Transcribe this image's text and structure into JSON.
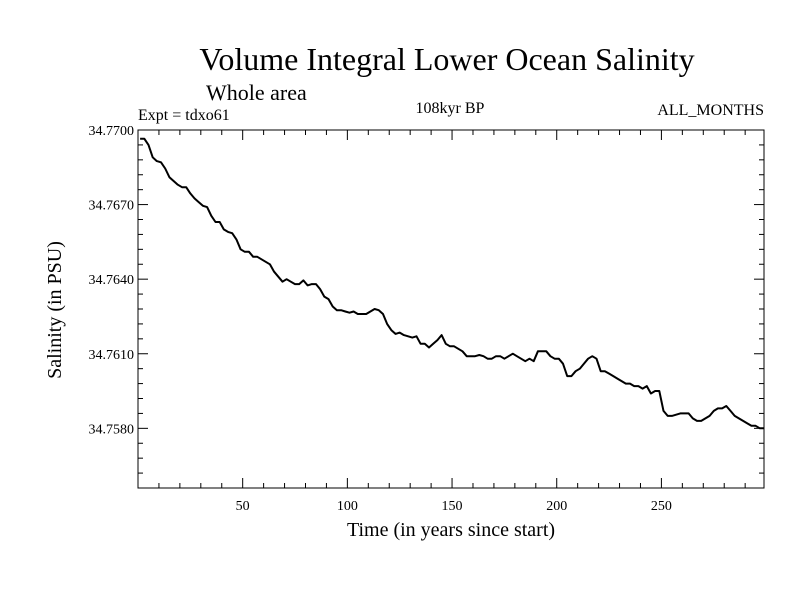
{
  "chart_data": {
    "type": "line",
    "title": "Volume Integral Lower Ocean Salinity",
    "subtitle": "Whole area",
    "left_note": "Expt = tdxo61",
    "center_note": "108kyr BP",
    "right_note": "ALL_MONTHS",
    "xlabel": "Time (in years since start)",
    "ylabel": "Salinity (in PSU)",
    "xlim": [
      0,
      299
    ],
    "ylim": [
      34.7556,
      34.77
    ],
    "x_ticks": [
      50,
      100,
      150,
      200,
      250
    ],
    "x_tick_labels": [
      "50",
      "100",
      "150",
      "200",
      "250"
    ],
    "y_ticks": [
      34.77,
      34.767,
      34.764,
      34.761,
      34.758
    ],
    "y_tick_labels": [
      "34.7700",
      "34.7670",
      "34.7640",
      "34.7610",
      "34.7580"
    ],
    "grid": false,
    "series": [
      {
        "name": "salinity",
        "color": "#000000",
        "x": [
          1,
          3,
          5,
          7,
          9,
          11,
          13,
          15,
          17,
          19,
          21,
          23,
          25,
          27,
          29,
          31,
          33,
          35,
          37,
          39,
          41,
          43,
          45,
          47,
          49,
          51,
          53,
          55,
          57,
          59,
          61,
          63,
          65,
          67,
          69,
          71,
          73,
          75,
          77,
          79,
          81,
          83,
          85,
          87,
          89,
          91,
          93,
          95,
          97,
          99,
          101,
          103,
          105,
          107,
          109,
          111,
          113,
          115,
          117,
          119,
          121,
          123,
          125,
          127,
          129,
          131,
          133,
          135,
          137,
          139,
          141,
          143,
          145,
          147,
          149,
          151,
          153,
          155,
          157,
          159,
          161,
          163,
          165,
          167,
          169,
          171,
          173,
          175,
          177,
          179,
          181,
          183,
          185,
          187,
          189,
          191,
          193,
          195,
          197,
          199,
          201,
          203,
          205,
          207,
          209,
          211,
          213,
          215,
          217,
          219,
          221,
          223,
          225,
          227,
          229,
          231,
          233,
          235,
          237,
          239,
          241,
          243,
          245,
          247,
          249,
          251,
          253,
          255,
          257,
          259,
          261,
          263,
          265,
          267,
          269,
          271,
          273,
          275,
          277,
          279,
          281,
          283,
          285,
          287,
          289,
          291,
          293,
          295,
          297,
          299
        ],
        "values": [
          34.76965,
          34.76965,
          34.7694,
          34.7689,
          34.76875,
          34.7687,
          34.76845,
          34.7681,
          34.76795,
          34.7678,
          34.7677,
          34.7677,
          34.76745,
          34.76725,
          34.7671,
          34.76695,
          34.7669,
          34.76655,
          34.7663,
          34.7663,
          34.766,
          34.7659,
          34.76585,
          34.7656,
          34.7652,
          34.7651,
          34.7651,
          34.7649,
          34.7649,
          34.7648,
          34.7647,
          34.7646,
          34.7643,
          34.7641,
          34.7639,
          34.764,
          34.7639,
          34.7638,
          34.7638,
          34.76395,
          34.76375,
          34.7638,
          34.7638,
          34.7636,
          34.7633,
          34.7632,
          34.7629,
          34.76275,
          34.76275,
          34.7627,
          34.76265,
          34.7627,
          34.7626,
          34.7626,
          34.7626,
          34.7627,
          34.7628,
          34.76275,
          34.7626,
          34.7622,
          34.76195,
          34.7618,
          34.76185,
          34.76175,
          34.7617,
          34.76165,
          34.7617,
          34.7614,
          34.7614,
          34.76125,
          34.7614,
          34.76155,
          34.76175,
          34.7614,
          34.7613,
          34.7613,
          34.7612,
          34.7611,
          34.7609,
          34.7609,
          34.7609,
          34.76095,
          34.7609,
          34.7608,
          34.7608,
          34.7609,
          34.7609,
          34.7608,
          34.7609,
          34.761,
          34.7609,
          34.7608,
          34.7607,
          34.7608,
          34.7607,
          34.7611,
          34.7611,
          34.7611,
          34.7609,
          34.7608,
          34.7608,
          34.7606,
          34.7601,
          34.7601,
          34.7603,
          34.7604,
          34.7606,
          34.7608,
          34.7609,
          34.7608,
          34.7603,
          34.7603,
          34.7602,
          34.7601,
          34.76,
          34.7599,
          34.7598,
          34.7598,
          34.7597,
          34.7597,
          34.7596,
          34.7597,
          34.7594,
          34.7595,
          34.7595,
          34.7587,
          34.7585,
          34.7585,
          34.75855,
          34.7586,
          34.7586,
          34.7586,
          34.7584,
          34.7583,
          34.7583,
          34.7584,
          34.7585,
          34.7587,
          34.7588,
          34.7588,
          34.7589,
          34.7587,
          34.7585,
          34.7584,
          34.7583,
          34.7582,
          34.7581,
          34.7581,
          34.758,
          34.758
        ]
      }
    ]
  }
}
